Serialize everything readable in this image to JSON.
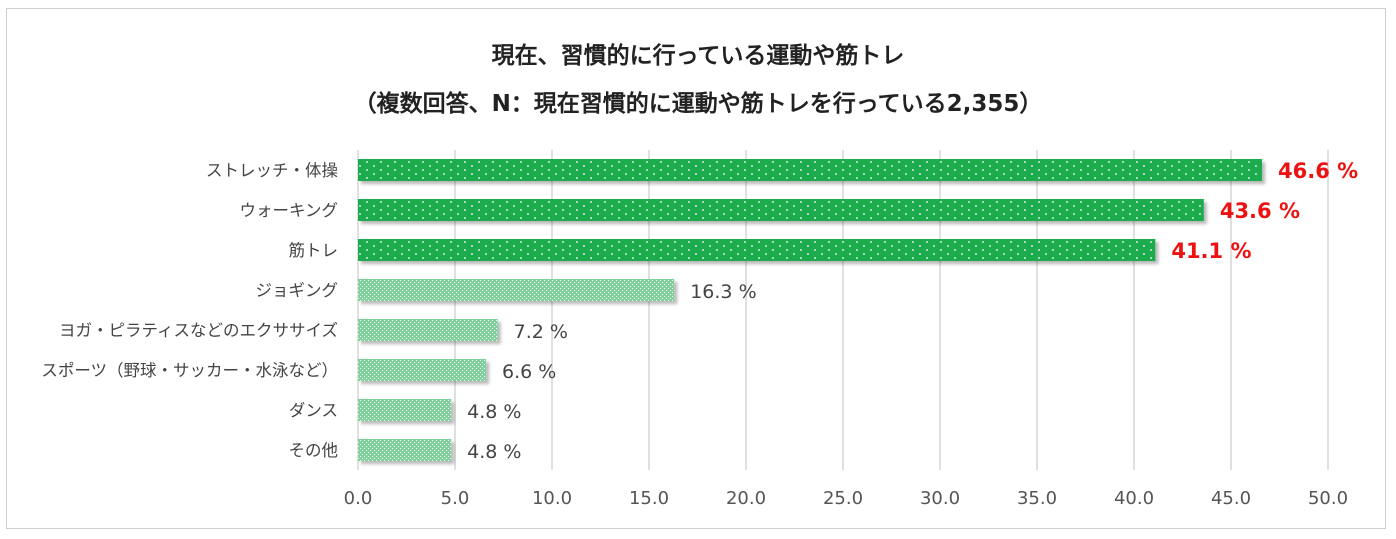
{
  "chart_data": {
    "type": "bar",
    "orientation": "horizontal",
    "title": "現在、習慣的に行っている運動や筋トレ",
    "subtitle": "（複数回答、N：現在習慣的に運動や筋トレを行っている2,355）",
    "categories": [
      "ストレッチ・体操",
      "ウォーキング",
      "筋トレ",
      "ジョギング",
      "ヨガ・ピラティスなどのエクササイズ",
      "スポーツ（野球・サッカー・水泳など）",
      "ダンス",
      "その他"
    ],
    "values": [
      46.6,
      43.6,
      41.1,
      16.3,
      7.2,
      6.6,
      4.8,
      4.8
    ],
    "value_labels": [
      "46.6 %",
      "43.6 %",
      "41.1 %",
      "16.3 %",
      "7.2 %",
      "6.6 %",
      "4.8 %",
      "4.8 %"
    ],
    "highlighted": [
      true,
      true,
      true,
      false,
      false,
      false,
      false,
      false
    ],
    "xlim": [
      0,
      50
    ],
    "xticks": [
      0,
      5,
      10,
      15,
      20,
      25,
      30,
      35,
      40,
      45,
      50
    ],
    "xtick_labels": [
      "0.0",
      "5.0",
      "10.0",
      "15.0",
      "20.0",
      "25.0",
      "30.0",
      "35.0",
      "40.0",
      "45.0",
      "50.0"
    ],
    "grid": true,
    "colors": {
      "highlight_bar": "#1aab4e",
      "normal_bar": "#7fd09a",
      "highlight_label": "#ee1111",
      "normal_label": "#444444",
      "grid": "#d6d6d6"
    }
  }
}
